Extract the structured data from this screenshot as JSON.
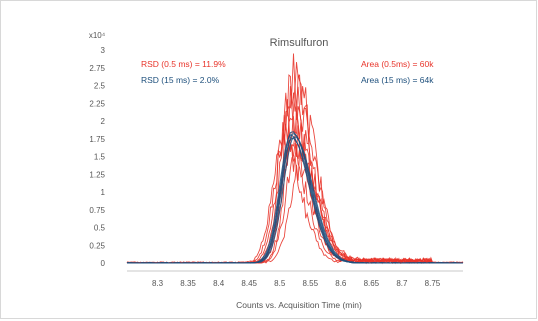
{
  "chart_data": {
    "type": "line",
    "title": "Rimsulfuron",
    "xlabel": "Counts vs. Acquisition Time (min)",
    "ylabel": "",
    "y_multiplier_label": "x10⁴",
    "xlim": [
      8.25,
      8.8
    ],
    "ylim": [
      0,
      3
    ],
    "x_ticks": [
      "8.3",
      "8.35",
      "8.4",
      "8.45",
      "8.5",
      "8.55",
      "8.6",
      "8.65",
      "8.7",
      "8.75"
    ],
    "y_ticks": [
      "0",
      "0.25",
      "0.5",
      "0.75",
      "1",
      "1.25",
      "1.5",
      "1.75",
      "2",
      "2.25",
      "2.5",
      "2.75",
      "3"
    ],
    "grid": false,
    "annotations": [
      {
        "text": "RSD (0.5 ms) = 11.9%",
        "color": "#e8342a"
      },
      {
        "text": "RSD (15 ms) = 2.0%",
        "color": "#1d4f7c"
      },
      {
        "text": "Area (0.5ms) = 60k",
        "color": "#e8342a"
      },
      {
        "text": "Area (15 ms) = 64k",
        "color": "#1d4f7c"
      }
    ],
    "series": [
      {
        "color": "#e8342a",
        "peak_x": 8.525,
        "peak_y": 2.75
      },
      {
        "color": "#e8342a",
        "peak_x": 8.52,
        "peak_y": 2.55
      },
      {
        "color": "#e8342a",
        "peak_x": 8.53,
        "peak_y": 2.35
      },
      {
        "color": "#e8342a",
        "peak_x": 8.515,
        "peak_y": 2.2
      },
      {
        "color": "#e8342a",
        "peak_x": 8.525,
        "peak_y": 2.05
      },
      {
        "color": "#e8342a",
        "peak_x": 8.51,
        "peak_y": 1.9
      },
      {
        "color": "#e8342a",
        "peak_x": 8.53,
        "peak_y": 1.7
      },
      {
        "color": "#e8342a",
        "peak_x": 8.52,
        "peak_y": 1.55
      },
      {
        "color": "#e8342a",
        "peak_x": 8.535,
        "peak_y": 1.4
      },
      {
        "color": "#e8342a",
        "peak_x": 8.505,
        "peak_y": 1.65
      },
      {
        "color": "#1d4f7c",
        "peak_x": 8.52,
        "peak_y": 1.85
      },
      {
        "color": "#1d4f7c",
        "peak_x": 8.522,
        "peak_y": 1.82
      },
      {
        "color": "#1d4f7c",
        "peak_x": 8.518,
        "peak_y": 1.8
      },
      {
        "color": "#1d4f7c",
        "peak_x": 8.524,
        "peak_y": 1.78
      },
      {
        "color": "#1d4f7c",
        "peak_x": 8.52,
        "peak_y": 1.76
      }
    ]
  }
}
